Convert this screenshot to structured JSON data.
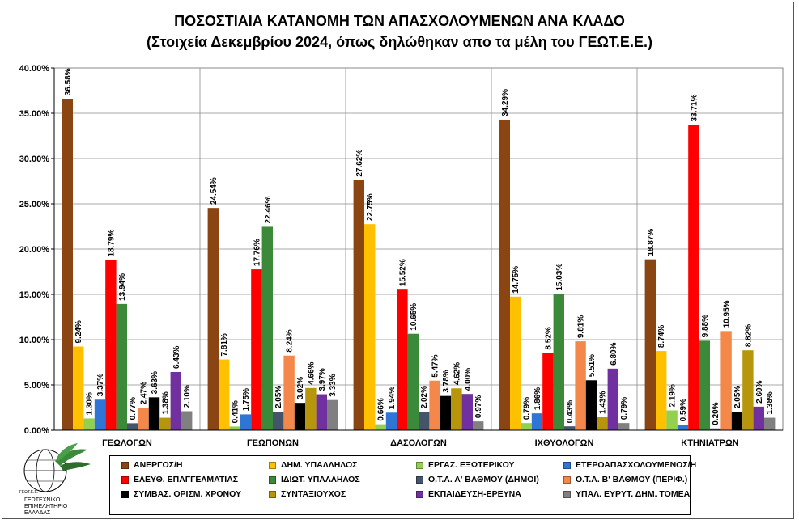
{
  "titles": {
    "line1": "ΠΟΣΟΣΤΙΑΙΑ ΚΑΤΑΝΟΜΗ ΤΩΝ ΑΠΑΣΧΟΛΟΥΜΕΝΩΝ ΑΝΑ ΚΛΑΔΟ",
    "line2": "(Στοιχεία Δεκεμβρίου 2024, όπως δηλώθηκαν  απο τα μέλη του ΓΕΩΤ.Ε.Ε.)"
  },
  "logo": {
    "line1": "ΓΕΩΤΕΧΝΙΚΟ",
    "line2": "ΕΠΙΜΕΛΗΤΗΡΙΟ",
    "line3": "ΕΛΛΑΔΑΣ",
    "ring_text": "ΓΕΩΤ.Ε.Ε."
  },
  "chart_data": {
    "type": "bar",
    "title": "ΠΟΣΟΣΤΙΑΙΑ ΚΑΤΑΝΟΜΗ ΤΩΝ ΑΠΑΣΧΟΛΟΥΜΕΝΩΝ ΑΝΑ ΚΛΑΔΟ",
    "subtitle": "(Στοιχεία Δεκεμβρίου 2024, όπως δηλώθηκαν  απο τα μέλη του ΓΕΩΤ.Ε.Ε.)",
    "categories": [
      "ΓΕΩΛΟΓΩΝ",
      "ΓΕΩΠΟΝΩΝ",
      "ΔΑΣΟΛΟΓΩΝ",
      "ΙΧΘΥΟΛΟΓΩΝ",
      "ΚΤΗΝΙΑΤΡΩΝ"
    ],
    "ylim": [
      0,
      40
    ],
    "yticks": [
      0,
      5,
      10,
      15,
      20,
      25,
      30,
      35,
      40
    ],
    "ytick_labels": [
      "0.00%",
      "5.00%",
      "10.00%",
      "15.00%",
      "20.00%",
      "25.00%",
      "30.00%",
      "35.00%",
      "40.00%"
    ],
    "grid": true,
    "legend_position": "bottom",
    "series": [
      {
        "name": "ΑΝΕΡΓΟΣ/Η",
        "color": "#8B4513",
        "values": [
          36.58,
          24.54,
          27.62,
          34.29,
          18.87
        ],
        "labels": [
          "36.58%",
          "24.54%",
          "27.62%",
          "34.29%",
          "18.87%"
        ]
      },
      {
        "name": "ΔΗΜ. ΥΠΑΛΛΗΛΟΣ",
        "color": "#FFC000",
        "values": [
          9.24,
          7.81,
          22.75,
          14.75,
          8.74
        ],
        "labels": [
          "9.24%",
          "7.81%",
          "22.75%",
          "14.75%",
          "8.74%"
        ]
      },
      {
        "name": "ΕΡΓΑΖ. ΕΞΩΤΕΡΙΚΟΥ",
        "color": "#92D050",
        "values": [
          1.3,
          0.41,
          0.66,
          0.79,
          2.19
        ],
        "labels": [
          "1.30%",
          "0.41%",
          "0.66%",
          "0.79%",
          "2.19%"
        ]
      },
      {
        "name": "ΕΤΕΡΟΑΠΑΣΧΟΛΟΥΜΕΝΟΣ/Η",
        "color": "#2E75D6",
        "values": [
          3.37,
          1.75,
          1.94,
          1.86,
          0.59
        ],
        "labels": [
          "3.37%",
          "1.75%",
          "1.94%",
          "1.86%",
          "0.59%"
        ]
      },
      {
        "name": "ΕΛΕΥΘ. ΕΠΑΓΓΕΛΜΑΤΙΑΣ",
        "color": "#FF0000",
        "values": [
          18.79,
          17.76,
          15.52,
          8.52,
          33.71
        ],
        "labels": [
          "18.79%",
          "17.76%",
          "15.52%",
          "8.52%",
          "33.71%"
        ]
      },
      {
        "name": "ΙΔΙΩΤ. ΥΠΑΛΛΗΛΟΣ",
        "color": "#3A8A3A",
        "values": [
          13.94,
          22.46,
          10.65,
          15.03,
          9.88
        ],
        "labels": [
          "13.94%",
          "22.46%",
          "10.65%",
          "15.03%",
          "9.88%"
        ]
      },
      {
        "name": "Ο.Τ.Α. Α' ΒΑΘΜΟΥ (ΔΗΜΟΙ)",
        "color": "#44546A",
        "values": [
          0.77,
          2.05,
          2.02,
          0.43,
          0.2
        ],
        "labels": [
          "0.77%",
          "2.05%",
          "2.02%",
          "0.43%",
          "0.20%"
        ]
      },
      {
        "name": "Ο.Τ.Α. Β' ΒΑΘΜΟΥ (ΠΕΡΙΦ.)",
        "color": "#F4884A",
        "values": [
          2.47,
          8.24,
          5.47,
          9.81,
          10.95
        ],
        "labels": [
          "2.47%",
          "8.24%",
          "5.47%",
          "9.81%",
          "10.95%"
        ]
      },
      {
        "name": "ΣΥΜΒΑΣ. ΟΡΙΣΜ. ΧΡΟΝΟΥ",
        "color": "#000000",
        "values": [
          3.63,
          3.02,
          3.78,
          5.51,
          2.05
        ],
        "labels": [
          "3.63%",
          "3.02%",
          "3.78%",
          "5.51%",
          "2.05%"
        ]
      },
      {
        "name": "ΣΥΝΤΑΞΙΟΥΧΟΣ",
        "color": "#B8960C",
        "values": [
          1.38,
          4.66,
          4.62,
          1.43,
          8.82
        ],
        "labels": [
          "1.38%",
          "4.66%",
          "4.62%",
          "1.43%",
          "8.82%"
        ]
      },
      {
        "name": "ΕΚΠΑΙΔΕΥΣΗ-ΕΡΕΥΝΑ",
        "color": "#7030A0",
        "values": [
          6.43,
          3.97,
          4.0,
          6.8,
          2.6
        ],
        "labels": [
          "6.43%",
          "3.97%",
          "4.00%",
          "6.80%",
          "2.60%"
        ]
      },
      {
        "name": "ΥΠΑΛ. ΕΥΡΥΤ. ΔΗΜ. ΤΟΜΕΑ",
        "color": "#808080",
        "values": [
          2.1,
          3.33,
          0.97,
          0.79,
          1.38
        ],
        "labels": [
          "2.10%",
          "3.33%",
          "0.97%",
          "0.79%",
          "1.38%"
        ]
      }
    ]
  }
}
